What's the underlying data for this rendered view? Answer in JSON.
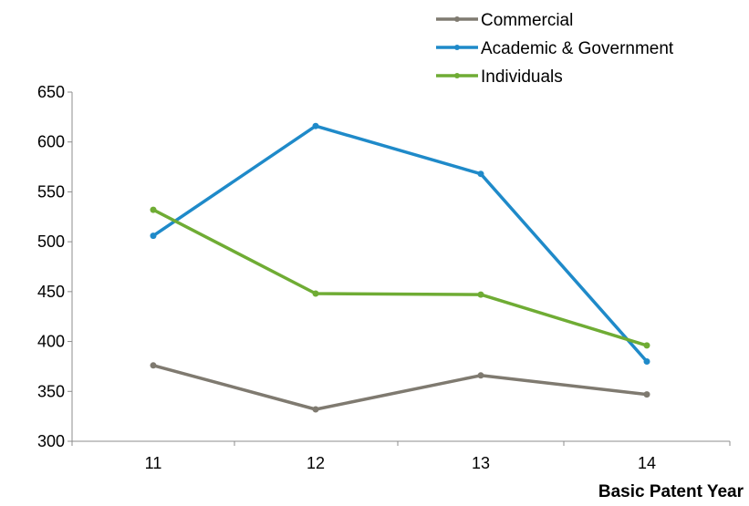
{
  "chart_data": {
    "type": "line",
    "title": "",
    "xlabel": "Basic Patent Year",
    "ylabel": "",
    "x": [
      "11",
      "12",
      "13",
      "14"
    ],
    "ylim": [
      300,
      650
    ],
    "yticks": [
      300,
      350,
      400,
      450,
      500,
      550,
      600,
      650
    ],
    "grid": false,
    "legend_position": "top",
    "series": [
      {
        "name": "Commercial",
        "values": [
          376,
          332,
          366,
          347
        ],
        "color": "#7f7a70"
      },
      {
        "name": "Academic & Government",
        "values": [
          506,
          616,
          568,
          380
        ],
        "color": "#1f8ac9"
      },
      {
        "name": "Individuals",
        "values": [
          532,
          448,
          447,
          396
        ],
        "color": "#6fac34"
      }
    ]
  }
}
